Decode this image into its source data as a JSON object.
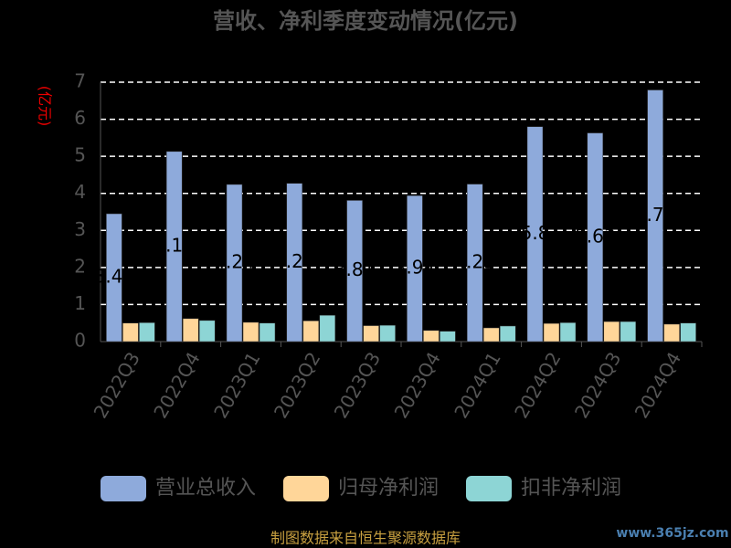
{
  "chart_data": {
    "type": "bar",
    "title": "营收、净利季度变动情况(亿元)",
    "y_label": "(亿元)",
    "categories": [
      "2022Q3",
      "2022Q4",
      "2023Q1",
      "2023Q2",
      "2023Q3",
      "2023Q4",
      "2024Q1",
      "2024Q2",
      "2024Q3",
      "2024Q4"
    ],
    "series": [
      {
        "name": "营业总收入",
        "color": "#8eaadb",
        "values": [
          3.45,
          5.13,
          4.24,
          4.27,
          3.81,
          3.94,
          4.25,
          5.8,
          5.63,
          6.79
        ]
      },
      {
        "name": "归母净利润",
        "color": "#ffd699",
        "values": [
          0.5,
          0.62,
          0.52,
          0.56,
          0.43,
          0.3,
          0.37,
          0.49,
          0.54,
          0.47
        ]
      },
      {
        "name": "扣非净利润",
        "color": "#8dd5d5",
        "values": [
          0.51,
          0.57,
          0.5,
          0.71,
          0.44,
          0.28,
          0.42,
          0.51,
          0.54,
          0.5
        ]
      }
    ],
    "ylim": [
      0,
      7
    ],
    "yticks": [
      0,
      1,
      2,
      3,
      4,
      5,
      6,
      7
    ],
    "grid": true,
    "source": "制图数据来自恒生聚源数据库",
    "watermark": "www.365jz.com"
  }
}
